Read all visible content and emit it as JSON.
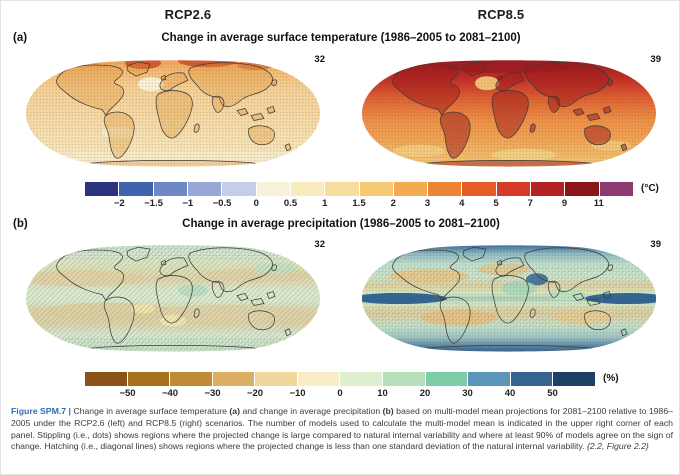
{
  "scenarios": {
    "left": "RCP2.6",
    "right": "RCP8.5"
  },
  "panel_a": {
    "label": "(a)",
    "title": "Change in average surface temperature (1986–2005 to 2081–2100)",
    "maps": [
      {
        "scenario": "RCP2.6",
        "model_count": "32"
      },
      {
        "scenario": "RCP8.5",
        "model_count": "39"
      }
    ],
    "colorbar": {
      "unit": "(°C)",
      "tick_labels": [
        "−2",
        "−1.5",
        "−1",
        "−0.5",
        "0",
        "0.5",
        "1",
        "1.5",
        "2",
        "3",
        "4",
        "5",
        "7",
        "9",
        "11"
      ],
      "segment_colors": [
        "#2A357E",
        "#4063AE",
        "#6E87C5",
        "#97A8D6",
        "#C4CEE8",
        "#F9F2DB",
        "#F8EBBE",
        "#F7DE9E",
        "#F5C875",
        "#F2AB53",
        "#EC8533",
        "#E25D28",
        "#D43A27",
        "#B22323",
        "#8C1617",
        "#8C3A70"
      ]
    }
  },
  "panel_b": {
    "label": "(b)",
    "title": "Change in average precipitation (1986–2005 to 2081–2100)",
    "maps": [
      {
        "scenario": "RCP2.6",
        "model_count": "32"
      },
      {
        "scenario": "RCP8.5",
        "model_count": "39"
      }
    ],
    "colorbar": {
      "unit": "(%)",
      "tick_labels": [
        "−50",
        "−40",
        "−30",
        "−20",
        "−10",
        "0",
        "10",
        "20",
        "30",
        "40",
        "50"
      ],
      "segment_colors": [
        "#8B5118",
        "#A8711F",
        "#C08A38",
        "#DCAF63",
        "#EFD79E",
        "#F7EDC6",
        "#DFEFD2",
        "#B7DFBC",
        "#7ECCA8",
        "#5C95BA",
        "#36648F",
        "#1E3F66"
      ]
    }
  },
  "caption": {
    "segments": [
      {
        "text": "Figure SPM.7 |  ",
        "style": "label"
      },
      {
        "text": "Change in average surface temperature ",
        "style": "normal"
      },
      {
        "text": "(a)",
        "style": "bold"
      },
      {
        "text": " and change in average precipitation ",
        "style": "normal"
      },
      {
        "text": "(b)",
        "style": "bold"
      },
      {
        "text": " based on multi-model mean projections for 2081–2100 relative to 1986–2005 under the RCP2.6 (left) and RCP8.5 (right) scenarios. The number of models used to calculate the multi-model mean is indicated in the upper right corner of each panel. Stippling (i.e., dots) shows regions where the projected change is large compared to natural internal variability and where at least 90% of models agree on the sign of change. Hatching (i.e., diagonal lines) shows regions where the projected change is less than one standard deviation of the natural internal variability. ",
        "style": "normal"
      },
      {
        "text": "{2.2, Figure 2.2}",
        "style": "italic"
      }
    ]
  },
  "chart_data": [
    {
      "type": "heatmap",
      "subtype": "global_map_pair",
      "title": "Change in average surface temperature (1986–2005 to 2081–2100)",
      "panels": [
        {
          "scenario": "RCP2.6",
          "models_used": 32
        },
        {
          "scenario": "RCP8.5",
          "models_used": 39
        }
      ],
      "scale": {
        "unit": "°C",
        "boundaries": [
          -2,
          -1.5,
          -1,
          -0.5,
          0,
          0.5,
          1,
          1.5,
          2,
          3,
          4,
          5,
          7,
          9,
          11
        ],
        "colors": [
          "#2A357E",
          "#4063AE",
          "#6E87C5",
          "#97A8D6",
          "#C4CEE8",
          "#F9F2DB",
          "#F8EBBE",
          "#F7DE9E",
          "#F5C875",
          "#F2AB53",
          "#EC8533",
          "#E25D28",
          "#D43A27",
          "#B22323",
          "#8C1617",
          "#8C3A70"
        ]
      },
      "legend_position": "bottom",
      "notes": "RCP2.6 map mostly 0.5–2 °C warming, Arctic 2–4 °C; RCP8.5 map mostly 2–5 °C over ocean, 4–7+ °C over land, >7–11 °C in Arctic; stippling over most regions"
    },
    {
      "type": "heatmap",
      "subtype": "global_map_pair",
      "title": "Change in average precipitation (1986–2005 to 2081–2100)",
      "panels": [
        {
          "scenario": "RCP2.6",
          "models_used": 32
        },
        {
          "scenario": "RCP8.5",
          "models_used": 39
        }
      ],
      "scale": {
        "unit": "%",
        "boundaries": [
          -50,
          -40,
          -30,
          -20,
          -10,
          0,
          10,
          20,
          30,
          40,
          50
        ],
        "colors": [
          "#8B5118",
          "#A8711F",
          "#C08A38",
          "#DCAF63",
          "#EFD79E",
          "#F7EDC6",
          "#DFEFD2",
          "#B7DFBC",
          "#7ECCA8",
          "#5C95BA",
          "#36648F",
          "#1E3F66"
        ]
      },
      "legend_position": "bottom",
      "notes": "RCP2.6 map mostly −10 to +10% with hatching; RCP8.5 map shows >40% increases at high latitudes and equatorial Pacific, 10–30% decreases in subtropics, stippling widespread"
    }
  ]
}
